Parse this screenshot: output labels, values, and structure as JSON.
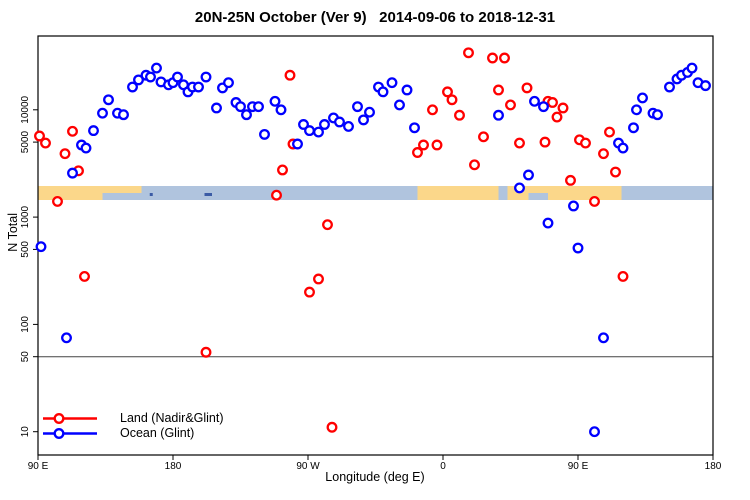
{
  "chart_data": {
    "type": "scatter",
    "title": "20N-25N October (Ver 9)   2014-09-06 to 2018-12-31",
    "xlabel": "Longitude (deg E)",
    "ylabel": "N Total",
    "x_axis": {
      "range_deg_east_wrapped": [
        90,
        540
      ],
      "ticks": [
        90,
        180,
        270,
        360,
        450,
        540
      ],
      "tick_labels": [
        "90 E",
        "180",
        "90 W",
        "0",
        "90 E",
        "180"
      ]
    },
    "y_axis": {
      "scale": "log",
      "range": [
        6,
        48000
      ],
      "ticks": [
        10,
        50,
        100,
        500,
        1000,
        5000,
        10000
      ],
      "tick_labels": [
        "10",
        "50",
        "100",
        "500",
        "1000",
        "5000",
        "10000"
      ]
    },
    "grid": {
      "horizontal_line_at_y": 50
    },
    "legend": {
      "position": "bottom-left",
      "items": [
        {
          "label": "Land (Nadir&Glint)",
          "color": "#ff0000"
        },
        {
          "label": "Ocean (Glint)",
          "color": "#0000ff"
        }
      ]
    },
    "map_band": {
      "description": "20N-25N latitude strip drawn across plot",
      "n_top": 1950,
      "n_bottom": 1445,
      "ocean_color": "#b0c4de",
      "land_color": "#fbd78a",
      "island_color": "#3b5ba5",
      "land_patches": [
        {
          "lon": [
            90,
            133
          ],
          "part": "full"
        },
        {
          "lon": [
            133,
            159
          ],
          "part": "top"
        },
        {
          "lon": [
            343,
            397
          ],
          "part": "full"
        },
        {
          "lon": [
            403,
            417
          ],
          "part": "full"
        },
        {
          "lon": [
            417,
            430
          ],
          "part": "top"
        },
        {
          "lon": [
            430,
            479
          ],
          "part": "full"
        }
      ],
      "islands": [
        [
          164.5,
          166.5
        ],
        [
          201,
          206
        ]
      ]
    },
    "series": [
      {
        "name": "Land (Nadir&Glint)",
        "color": "#ff0000",
        "marker": "open-circle",
        "points": [
          [
            91,
            5700
          ],
          [
            95,
            4900
          ],
          [
            103,
            1400
          ],
          [
            108,
            3900
          ],
          [
            113,
            6300
          ],
          [
            117,
            2700
          ],
          [
            121,
            280
          ],
          [
            202,
            55
          ],
          [
            249,
            1600
          ],
          [
            253,
            2750
          ],
          [
            258,
            21000
          ],
          [
            260,
            4800
          ],
          [
            271,
            200
          ],
          [
            277,
            265
          ],
          [
            283,
            850
          ],
          [
            286,
            11
          ],
          [
            343,
            4000
          ],
          [
            347,
            4700
          ],
          [
            353,
            10000
          ],
          [
            356,
            4700
          ],
          [
            363,
            14700
          ],
          [
            366,
            12400
          ],
          [
            371,
            8900
          ],
          [
            377,
            34000
          ],
          [
            381,
            3070
          ],
          [
            387,
            5600
          ],
          [
            393,
            30400
          ],
          [
            397,
            15300
          ],
          [
            401,
            30400
          ],
          [
            405,
            11100
          ],
          [
            411,
            4900
          ],
          [
            416,
            16000
          ],
          [
            428,
            5000
          ],
          [
            430,
            12000
          ],
          [
            433,
            11700
          ],
          [
            436,
            8560
          ],
          [
            440,
            10400
          ],
          [
            445,
            2200
          ],
          [
            451,
            5250
          ],
          [
            455,
            4900
          ],
          [
            461,
            1400
          ],
          [
            467,
            3900
          ],
          [
            471,
            6200
          ],
          [
            475,
            2630
          ],
          [
            480,
            280
          ]
        ]
      },
      {
        "name": "Ocean (Glint)",
        "color": "#0000ff",
        "marker": "open-circle",
        "points": [
          [
            92,
            530
          ],
          [
            109,
            75
          ],
          [
            113,
            2570
          ],
          [
            119,
            4700
          ],
          [
            122,
            4400
          ],
          [
            127,
            6400
          ],
          [
            133,
            9300
          ],
          [
            137,
            12400
          ],
          [
            143,
            9300
          ],
          [
            147,
            9000
          ],
          [
            153,
            16300
          ],
          [
            157,
            19000
          ],
          [
            162,
            21000
          ],
          [
            165,
            20200
          ],
          [
            169,
            24500
          ],
          [
            172,
            18200
          ],
          [
            177,
            17100
          ],
          [
            180,
            17900
          ],
          [
            183,
            20200
          ],
          [
            187,
            17100
          ],
          [
            190,
            14700
          ],
          [
            193,
            16300
          ],
          [
            197,
            16300
          ],
          [
            202,
            20200
          ],
          [
            209,
            10400
          ],
          [
            213,
            16000
          ],
          [
            217,
            17900
          ],
          [
            222,
            11700
          ],
          [
            225,
            10700
          ],
          [
            229,
            9000
          ],
          [
            233,
            10700
          ],
          [
            237,
            10700
          ],
          [
            241,
            5900
          ],
          [
            248,
            12000
          ],
          [
            252,
            10000
          ],
          [
            263,
            4800
          ],
          [
            267,
            7300
          ],
          [
            271,
            6400
          ],
          [
            277,
            6200
          ],
          [
            281,
            7300
          ],
          [
            287,
            8400
          ],
          [
            291,
            7700
          ],
          [
            297,
            7000
          ],
          [
            303,
            10700
          ],
          [
            307,
            8050
          ],
          [
            311,
            9500
          ],
          [
            317,
            16300
          ],
          [
            320,
            14700
          ],
          [
            326,
            17900
          ],
          [
            331,
            11100
          ],
          [
            336,
            15300
          ],
          [
            341,
            6800
          ],
          [
            397,
            8900
          ],
          [
            411,
            1870
          ],
          [
            417,
            2470
          ],
          [
            421,
            12000
          ],
          [
            427,
            10700
          ],
          [
            430,
            880
          ],
          [
            447,
            1270
          ],
          [
            450,
            515
          ],
          [
            461,
            10
          ],
          [
            467,
            75
          ],
          [
            477,
            4900
          ],
          [
            480,
            4400
          ],
          [
            487,
            6800
          ],
          [
            489,
            10000
          ],
          [
            493,
            12900
          ],
          [
            500,
            9300
          ],
          [
            503,
            9000
          ],
          [
            511,
            16300
          ],
          [
            516,
            19400
          ],
          [
            519,
            21000
          ],
          [
            523,
            22300
          ],
          [
            526,
            24500
          ],
          [
            530,
            17900
          ],
          [
            535,
            16800
          ]
        ]
      }
    ]
  }
}
